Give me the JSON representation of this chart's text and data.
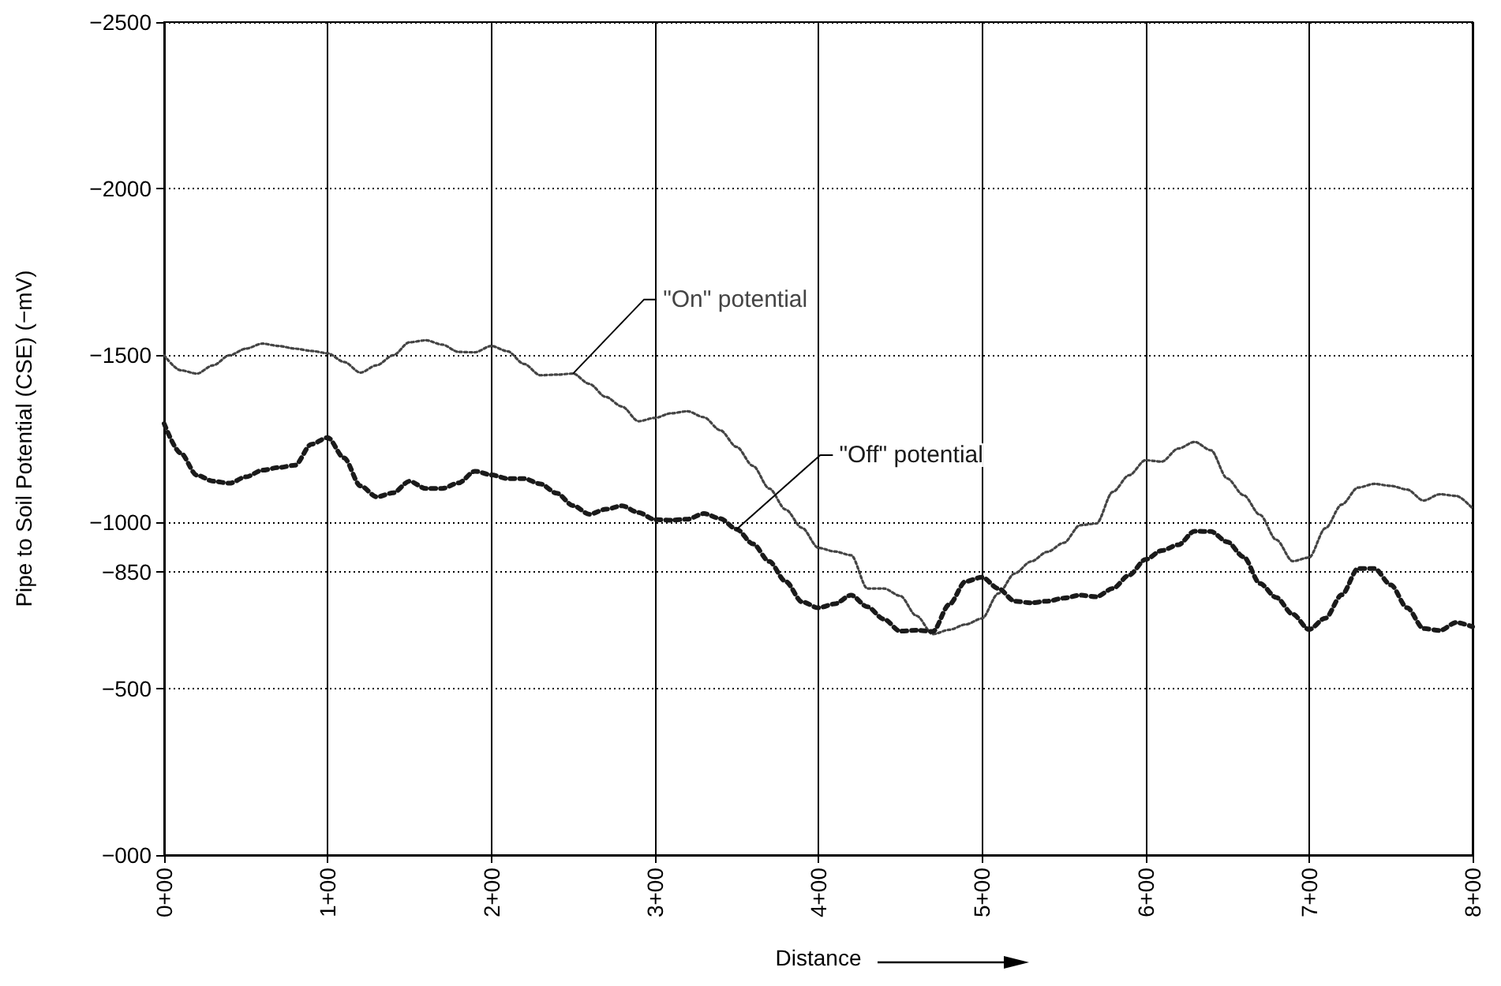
{
  "chart_data": {
    "type": "line",
    "xlabel": "Distance",
    "ylabel": "Pipe to Soil Potential (CSE) (−mV)",
    "categories": [
      "0+00",
      null,
      null,
      null,
      null,
      null,
      null,
      null,
      null,
      null,
      "1+00",
      null,
      null,
      null,
      null,
      null,
      null,
      null,
      null,
      null,
      "2+00",
      null,
      null,
      null,
      null,
      null,
      null,
      null,
      null,
      null,
      "3+00",
      null,
      null,
      null,
      null,
      null,
      null,
      null,
      null,
      null,
      "4+00",
      null,
      null,
      null,
      null,
      null,
      null,
      null,
      null,
      null,
      "5+00",
      null,
      null,
      null,
      null,
      null,
      null,
      null,
      null,
      null,
      "6+00",
      null,
      null,
      null,
      null,
      null,
      null,
      null,
      null,
      null,
      "7+00",
      null,
      null,
      null,
      null,
      null,
      null,
      null,
      null,
      null,
      "8+00"
    ],
    "ylim": [
      0,
      -2500
    ],
    "yticks": [
      {
        "value": 0,
        "label": "−000"
      },
      {
        "value": -500,
        "label": "−500"
      },
      {
        "value": -850,
        "label": "−850"
      },
      {
        "value": -1000,
        "label": "−1000"
      },
      {
        "value": -1500,
        "label": "−1500"
      },
      {
        "value": -2000,
        "label": "−2000"
      },
      {
        "value": -2500,
        "label": "−2500"
      }
    ],
    "grid": true,
    "marker": "none",
    "line_style": "dotted",
    "series": [
      {
        "name": "\"On\" potential",
        "color": "#444444",
        "values": [
          -1500,
          -1455,
          -1445,
          -1470,
          -1500,
          -1520,
          -1535,
          -1528,
          -1520,
          -1513,
          -1506,
          -1480,
          -1448,
          -1470,
          -1500,
          -1539,
          -1545,
          -1532,
          -1510,
          -1509,
          -1528,
          -1512,
          -1474,
          -1440,
          -1442,
          -1445,
          -1414,
          -1375,
          -1346,
          -1302,
          -1312,
          -1326,
          -1332,
          -1314,
          -1275,
          -1225,
          -1168,
          -1100,
          -1037,
          -982,
          -922,
          -911,
          -900,
          -800,
          -800,
          -778,
          -718,
          -663,
          -676,
          -692,
          -710,
          -785,
          -845,
          -881,
          -910,
          -937,
          -990,
          -995,
          -1090,
          -1140,
          -1185,
          -1181,
          -1220,
          -1240,
          -1215,
          -1130,
          -1080,
          -1021,
          -946,
          -882,
          -893,
          -981,
          -1052,
          -1103,
          -1114,
          -1108,
          -1097,
          -1064,
          -1083,
          -1078,
          -1040
        ]
      },
      {
        "name": "\"Off\" potential",
        "color": "#1a1a1a",
        "values": [
          -1295,
          -1207,
          -1140,
          -1122,
          -1116,
          -1135,
          -1155,
          -1163,
          -1170,
          -1233,
          -1253,
          -1192,
          -1108,
          -1075,
          -1087,
          -1122,
          -1100,
          -1100,
          -1117,
          -1152,
          -1141,
          -1130,
          -1130,
          -1114,
          -1086,
          -1049,
          -1023,
          -1038,
          -1048,
          -1028,
          -1007,
          -1005,
          -1008,
          -1025,
          -1010,
          -978,
          -934,
          -881,
          -821,
          -760,
          -742,
          -754,
          -780,
          -745,
          -708,
          -672,
          -675,
          -671,
          -752,
          -821,
          -834,
          -800,
          -762,
          -757,
          -762,
          -771,
          -780,
          -775,
          -800,
          -840,
          -887,
          -914,
          -931,
          -972,
          -971,
          -940,
          -895,
          -815,
          -773,
          -723,
          -677,
          -711,
          -781,
          -860,
          -860,
          -811,
          -742,
          -680,
          -674,
          -698,
          -685
        ]
      }
    ]
  }
}
